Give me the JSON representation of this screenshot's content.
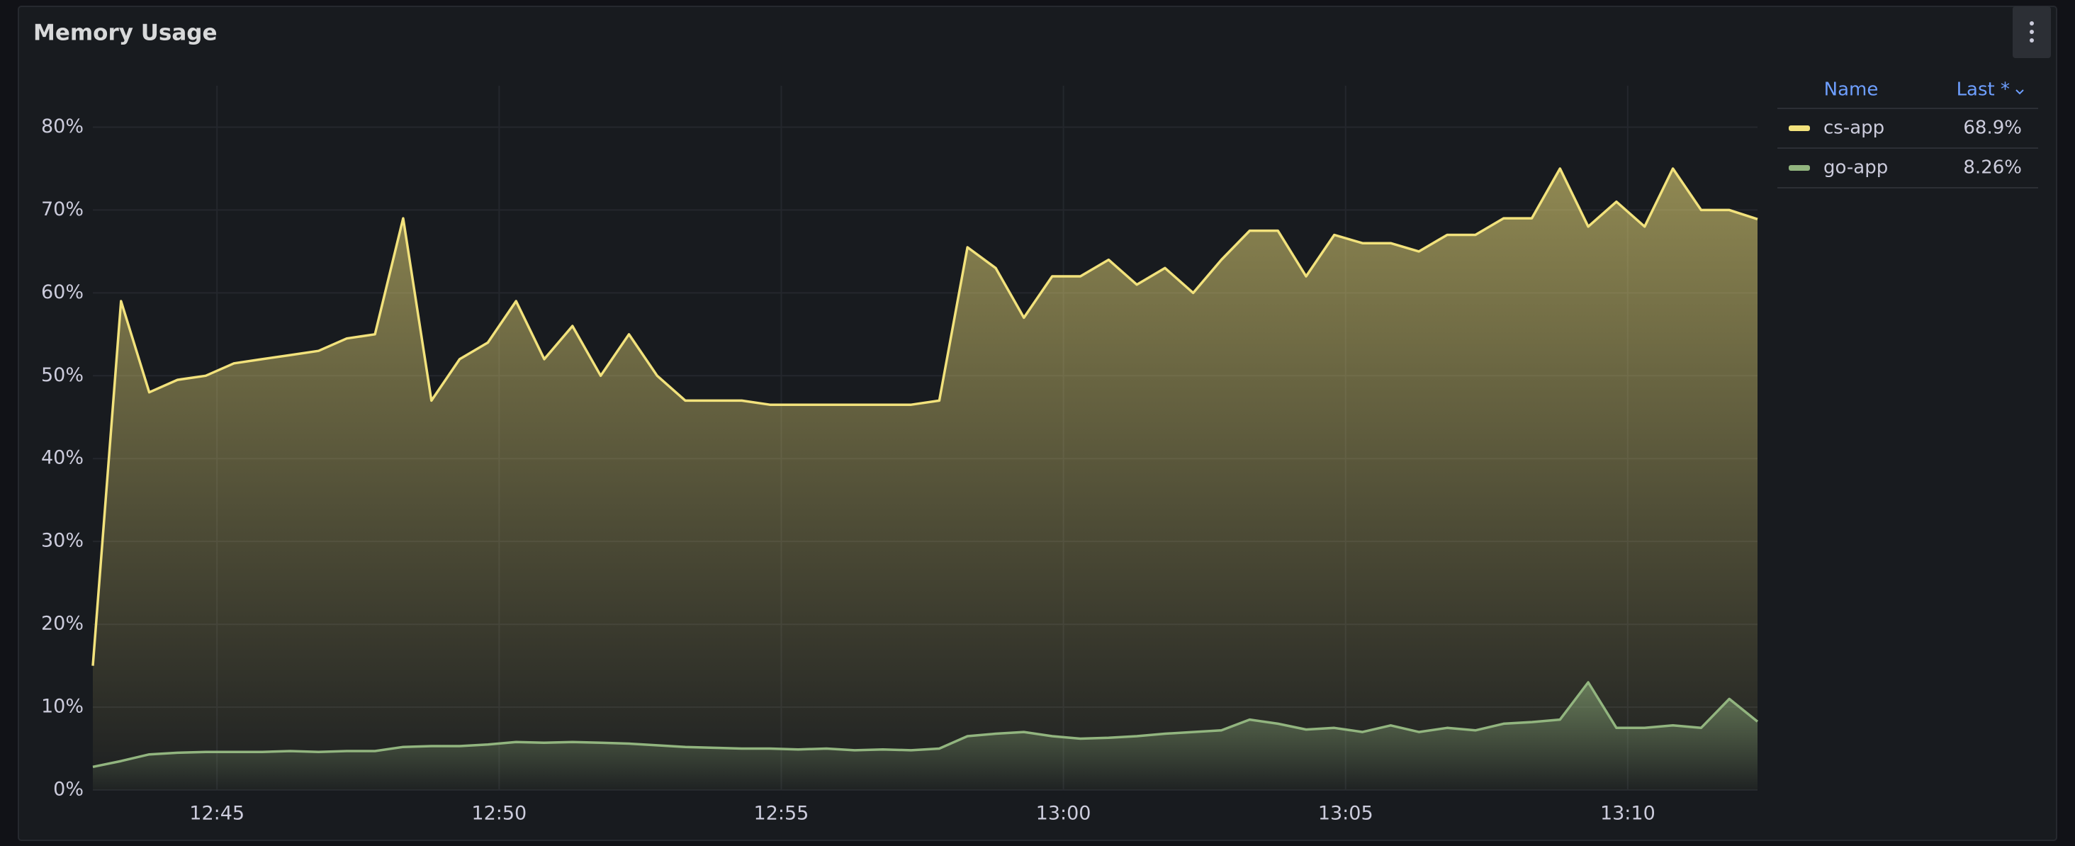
{
  "chart_data": {
    "type": "area",
    "title": "Memory Usage",
    "x": [
      762.8,
      763.3,
      763.8,
      764.3,
      764.8,
      765.3,
      765.8,
      766.3,
      766.8,
      767.3,
      767.8,
      768.3,
      768.8,
      769.3,
      769.8,
      770.3,
      770.8,
      771.3,
      771.8,
      772.3,
      772.8,
      773.3,
      773.8,
      774.3,
      774.8,
      775.3,
      775.8,
      776.3,
      776.8,
      777.3,
      777.8,
      778.3,
      778.8,
      779.3,
      779.8,
      780.3,
      780.8,
      781.3,
      781.8,
      782.3,
      782.8,
      783.3,
      783.8,
      784.3,
      784.8,
      785.3,
      785.8,
      786.3,
      786.8,
      787.3,
      787.8,
      788.3,
      788.8,
      789.3,
      789.8,
      790.3,
      790.8,
      791.3,
      791.8,
      792.3
    ],
    "series": [
      {
        "name": "cs-app",
        "color": "#f2e27c",
        "last_label": "68.9%",
        "values": [
          15,
          59,
          48,
          49.5,
          50,
          51.5,
          52,
          52.5,
          53,
          54.5,
          55,
          69,
          47,
          52,
          54,
          59,
          52,
          56,
          50,
          55,
          50,
          47,
          47,
          47,
          46.5,
          46.5,
          46.5,
          46.5,
          46.5,
          46.5,
          47,
          65.5,
          63,
          57,
          62,
          62,
          64,
          61,
          63,
          60,
          64,
          67.5,
          67.5,
          62,
          67,
          66,
          66,
          65,
          67,
          67,
          69,
          69,
          75,
          68,
          71,
          68,
          75,
          70,
          70,
          68.9
        ]
      },
      {
        "name": "go-app",
        "color": "#92b57f",
        "last_label": "8.26%",
        "values": [
          2.8,
          3.5,
          4.3,
          4.5,
          4.6,
          4.6,
          4.6,
          4.7,
          4.6,
          4.7,
          4.7,
          5.2,
          5.3,
          5.3,
          5.5,
          5.8,
          5.7,
          5.8,
          5.7,
          5.6,
          5.4,
          5.2,
          5.1,
          5.0,
          5.0,
          4.9,
          5.0,
          4.8,
          4.9,
          4.8,
          5.0,
          6.5,
          6.8,
          7.0,
          6.5,
          6.2,
          6.3,
          6.5,
          6.8,
          7.0,
          7.2,
          8.5,
          8.0,
          7.3,
          7.5,
          7.0,
          7.8,
          7.0,
          7.5,
          7.2,
          8.0,
          8.2,
          8.5,
          13.0,
          7.5,
          7.5,
          7.8,
          7.5,
          11.0,
          8.26
        ]
      }
    ],
    "xlim": [
      762.8,
      792.3
    ],
    "xticks": [
      {
        "value": 765,
        "label": "12:45"
      },
      {
        "value": 770,
        "label": "12:50"
      },
      {
        "value": 775,
        "label": "12:55"
      },
      {
        "value": 780,
        "label": "13:00"
      },
      {
        "value": 785,
        "label": "13:05"
      },
      {
        "value": 790,
        "label": "13:10"
      }
    ],
    "ylim": [
      0,
      85
    ],
    "yticks": [
      {
        "value": 0,
        "label": "0%"
      },
      {
        "value": 10,
        "label": "10%"
      },
      {
        "value": 20,
        "label": "20%"
      },
      {
        "value": 30,
        "label": "30%"
      },
      {
        "value": 40,
        "label": "40%"
      },
      {
        "value": 50,
        "label": "50%"
      },
      {
        "value": 60,
        "label": "60%"
      },
      {
        "value": 70,
        "label": "70%"
      },
      {
        "value": 80,
        "label": "80%"
      }
    ],
    "grid": true,
    "legend_columns": [
      "Name",
      "Last *"
    ]
  }
}
